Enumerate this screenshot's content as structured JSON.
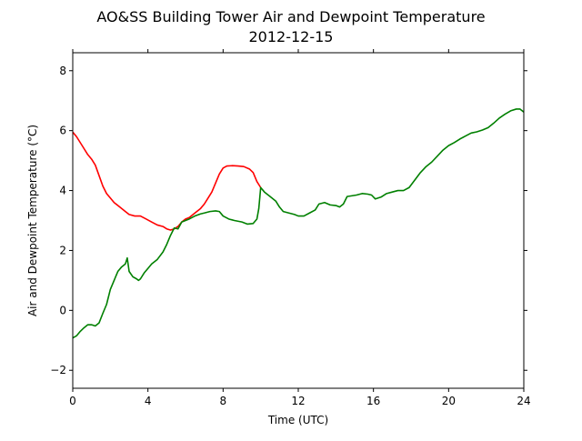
{
  "chart_data": {
    "type": "line",
    "title": "AO&SS Building Tower Air and Dewpoint Temperature",
    "subtitle": "2012-12-15",
    "xlabel": "Time (UTC)",
    "ylabel": "Air and Dewpoint Temperature (°C)",
    "xlim": [
      0,
      24
    ],
    "ylim": [
      -2.6,
      8.6
    ],
    "xticks": [
      0,
      4,
      8,
      12,
      16,
      20,
      24
    ],
    "xtick_labels": [
      "0",
      "4",
      "8",
      "12",
      "16",
      "20",
      "24"
    ],
    "yticks": [
      -2,
      0,
      2,
      4,
      6,
      8
    ],
    "ytick_labels": [
      "−2",
      "0",
      "2",
      "4",
      "6",
      "8"
    ],
    "grid": false,
    "legend": "none",
    "series": [
      {
        "color": "#ff0000",
        "points": [
          [
            0.0,
            5.95
          ],
          [
            0.2,
            5.8
          ],
          [
            0.5,
            5.5
          ],
          [
            0.8,
            5.2
          ],
          [
            1.0,
            5.05
          ],
          [
            1.2,
            4.85
          ],
          [
            1.4,
            4.5
          ],
          [
            1.6,
            4.15
          ],
          [
            1.8,
            3.9
          ],
          [
            2.0,
            3.75
          ],
          [
            2.2,
            3.6
          ],
          [
            2.5,
            3.45
          ],
          [
            2.8,
            3.3
          ],
          [
            3.0,
            3.2
          ],
          [
            3.3,
            3.15
          ],
          [
            3.6,
            3.15
          ],
          [
            3.9,
            3.05
          ],
          [
            4.2,
            2.95
          ],
          [
            4.5,
            2.85
          ],
          [
            4.8,
            2.8
          ],
          [
            5.0,
            2.72
          ],
          [
            5.2,
            2.68
          ],
          [
            5.4,
            2.72
          ],
          [
            5.6,
            2.8
          ],
          [
            5.8,
            2.95
          ],
          [
            6.0,
            3.05
          ],
          [
            6.2,
            3.1
          ],
          [
            6.5,
            3.25
          ],
          [
            6.8,
            3.4
          ],
          [
            7.0,
            3.55
          ],
          [
            7.2,
            3.75
          ],
          [
            7.4,
            3.95
          ],
          [
            7.6,
            4.25
          ],
          [
            7.8,
            4.55
          ],
          [
            8.0,
            4.75
          ],
          [
            8.2,
            4.82
          ],
          [
            8.5,
            4.83
          ],
          [
            8.8,
            4.82
          ],
          [
            9.1,
            4.8
          ],
          [
            9.4,
            4.72
          ],
          [
            9.6,
            4.6
          ],
          [
            9.8,
            4.3
          ],
          [
            10.0,
            4.1
          ]
        ]
      },
      {
        "color": "#008000",
        "points": [
          [
            0.0,
            -0.92
          ],
          [
            0.2,
            -0.85
          ],
          [
            0.4,
            -0.7
          ],
          [
            0.6,
            -0.58
          ],
          [
            0.8,
            -0.48
          ],
          [
            1.0,
            -0.48
          ],
          [
            1.2,
            -0.52
          ],
          [
            1.4,
            -0.42
          ],
          [
            1.6,
            -0.1
          ],
          [
            1.8,
            0.2
          ],
          [
            2.0,
            0.7
          ],
          [
            2.2,
            1.0
          ],
          [
            2.4,
            1.3
          ],
          [
            2.6,
            1.45
          ],
          [
            2.8,
            1.55
          ],
          [
            2.9,
            1.75
          ],
          [
            3.0,
            1.3
          ],
          [
            3.2,
            1.12
          ],
          [
            3.4,
            1.05
          ],
          [
            3.5,
            1.0
          ],
          [
            3.6,
            1.05
          ],
          [
            3.8,
            1.25
          ],
          [
            4.0,
            1.4
          ],
          [
            4.2,
            1.55
          ],
          [
            4.5,
            1.7
          ],
          [
            4.8,
            1.95
          ],
          [
            5.0,
            2.2
          ],
          [
            5.2,
            2.5
          ],
          [
            5.4,
            2.75
          ],
          [
            5.6,
            2.72
          ],
          [
            5.8,
            2.95
          ],
          [
            6.0,
            3.0
          ],
          [
            6.2,
            3.05
          ],
          [
            6.5,
            3.15
          ],
          [
            6.8,
            3.22
          ],
          [
            7.0,
            3.25
          ],
          [
            7.3,
            3.3
          ],
          [
            7.6,
            3.32
          ],
          [
            7.8,
            3.3
          ],
          [
            8.0,
            3.15
          ],
          [
            8.3,
            3.05
          ],
          [
            8.6,
            3.0
          ],
          [
            9.0,
            2.95
          ],
          [
            9.3,
            2.88
          ],
          [
            9.6,
            2.9
          ],
          [
            9.8,
            3.05
          ],
          [
            9.9,
            3.4
          ],
          [
            10.0,
            4.1
          ],
          [
            10.2,
            3.95
          ],
          [
            10.5,
            3.8
          ],
          [
            10.8,
            3.65
          ],
          [
            11.0,
            3.45
          ],
          [
            11.2,
            3.3
          ],
          [
            11.5,
            3.25
          ],
          [
            11.8,
            3.2
          ],
          [
            12.0,
            3.15
          ],
          [
            12.3,
            3.15
          ],
          [
            12.6,
            3.25
          ],
          [
            12.9,
            3.35
          ],
          [
            13.1,
            3.55
          ],
          [
            13.4,
            3.6
          ],
          [
            13.7,
            3.52
          ],
          [
            14.0,
            3.5
          ],
          [
            14.2,
            3.45
          ],
          [
            14.4,
            3.55
          ],
          [
            14.6,
            3.8
          ],
          [
            14.8,
            3.82
          ],
          [
            15.1,
            3.85
          ],
          [
            15.4,
            3.9
          ],
          [
            15.7,
            3.88
          ],
          [
            15.9,
            3.85
          ],
          [
            16.1,
            3.72
          ],
          [
            16.4,
            3.78
          ],
          [
            16.7,
            3.9
          ],
          [
            17.0,
            3.95
          ],
          [
            17.3,
            4.0
          ],
          [
            17.6,
            4.0
          ],
          [
            17.9,
            4.1
          ],
          [
            18.2,
            4.35
          ],
          [
            18.5,
            4.6
          ],
          [
            18.8,
            4.8
          ],
          [
            19.1,
            4.95
          ],
          [
            19.4,
            5.15
          ],
          [
            19.7,
            5.35
          ],
          [
            20.0,
            5.5
          ],
          [
            20.3,
            5.6
          ],
          [
            20.6,
            5.72
          ],
          [
            20.9,
            5.82
          ],
          [
            21.2,
            5.92
          ],
          [
            21.5,
            5.96
          ],
          [
            21.8,
            6.02
          ],
          [
            22.1,
            6.1
          ],
          [
            22.4,
            6.25
          ],
          [
            22.7,
            6.42
          ],
          [
            23.0,
            6.55
          ],
          [
            23.3,
            6.66
          ],
          [
            23.6,
            6.72
          ],
          [
            23.8,
            6.72
          ],
          [
            24.0,
            6.62
          ]
        ]
      }
    ]
  }
}
